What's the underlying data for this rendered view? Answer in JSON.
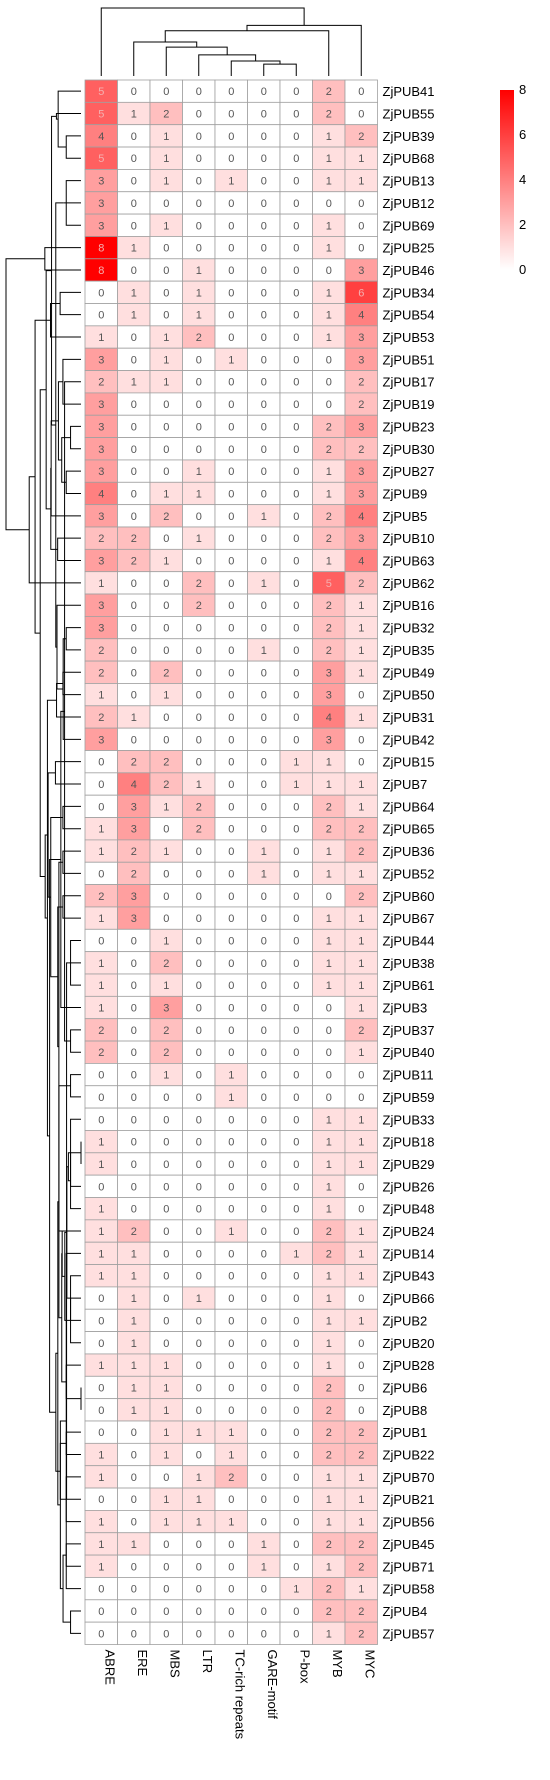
{
  "chart_data": {
    "type": "heatmap",
    "columns": [
      "ABRE",
      "ERE",
      "MBS",
      "LTR",
      "TC-rich repeats",
      "GARE-motif",
      "P-box",
      "MYB",
      "MYC"
    ],
    "rows": [
      {
        "label": "ZjPUB41",
        "values": [
          5,
          0,
          0,
          0,
          0,
          0,
          0,
          2,
          0
        ]
      },
      {
        "label": "ZjPUB55",
        "values": [
          5,
          1,
          2,
          0,
          0,
          0,
          0,
          2,
          0
        ]
      },
      {
        "label": "ZjPUB39",
        "values": [
          4,
          0,
          1,
          0,
          0,
          0,
          0,
          1,
          2
        ]
      },
      {
        "label": "ZjPUB68",
        "values": [
          5,
          0,
          1,
          0,
          0,
          0,
          0,
          1,
          1
        ]
      },
      {
        "label": "ZjPUB13",
        "values": [
          3,
          0,
          1,
          0,
          1,
          0,
          0,
          1,
          1
        ]
      },
      {
        "label": "ZjPUB12",
        "values": [
          3,
          0,
          0,
          0,
          0,
          0,
          0,
          0,
          0
        ]
      },
      {
        "label": "ZjPUB69",
        "values": [
          3,
          0,
          1,
          0,
          0,
          0,
          0,
          1,
          0
        ]
      },
      {
        "label": "ZjPUB25",
        "values": [
          8,
          1,
          0,
          0,
          0,
          0,
          0,
          1,
          0
        ]
      },
      {
        "label": "ZjPUB46",
        "values": [
          8,
          0,
          0,
          1,
          0,
          0,
          0,
          0,
          3
        ]
      },
      {
        "label": "ZjPUB34",
        "values": [
          0,
          1,
          0,
          1,
          0,
          0,
          0,
          1,
          6
        ]
      },
      {
        "label": "ZjPUB54",
        "values": [
          0,
          1,
          0,
          1,
          0,
          0,
          0,
          1,
          4
        ]
      },
      {
        "label": "ZjPUB53",
        "values": [
          1,
          0,
          1,
          2,
          0,
          0,
          0,
          1,
          3
        ]
      },
      {
        "label": "ZjPUB51",
        "values": [
          3,
          0,
          1,
          0,
          1,
          0,
          0,
          0,
          3
        ]
      },
      {
        "label": "ZjPUB17",
        "values": [
          2,
          1,
          1,
          0,
          0,
          0,
          0,
          0,
          2
        ]
      },
      {
        "label": "ZjPUB19",
        "values": [
          3,
          0,
          0,
          0,
          0,
          0,
          0,
          0,
          2
        ]
      },
      {
        "label": "ZjPUB23",
        "values": [
          3,
          0,
          0,
          0,
          0,
          0,
          0,
          2,
          3
        ]
      },
      {
        "label": "ZjPUB30",
        "values": [
          3,
          0,
          0,
          0,
          0,
          0,
          0,
          2,
          2
        ]
      },
      {
        "label": "ZjPUB27",
        "values": [
          3,
          0,
          0,
          1,
          0,
          0,
          0,
          1,
          3
        ]
      },
      {
        "label": "ZjPUB9",
        "values": [
          4,
          0,
          1,
          1,
          0,
          0,
          0,
          1,
          3
        ]
      },
      {
        "label": "ZjPUB5",
        "values": [
          3,
          0,
          2,
          0,
          0,
          1,
          0,
          2,
          4
        ]
      },
      {
        "label": "ZjPUB10",
        "values": [
          2,
          2,
          0,
          1,
          0,
          0,
          0,
          2,
          3
        ]
      },
      {
        "label": "ZjPUB63",
        "values": [
          3,
          2,
          1,
          0,
          0,
          0,
          0,
          1,
          4
        ]
      },
      {
        "label": "ZjPUB62",
        "values": [
          1,
          0,
          0,
          2,
          0,
          1,
          0,
          5,
          2
        ]
      },
      {
        "label": "ZjPUB16",
        "values": [
          3,
          0,
          0,
          2,
          0,
          0,
          0,
          2,
          1
        ]
      },
      {
        "label": "ZjPUB32",
        "values": [
          3,
          0,
          0,
          0,
          0,
          0,
          0,
          2,
          1
        ]
      },
      {
        "label": "ZjPUB35",
        "values": [
          2,
          0,
          0,
          0,
          0,
          1,
          0,
          2,
          1
        ]
      },
      {
        "label": "ZjPUB49",
        "values": [
          2,
          0,
          2,
          0,
          0,
          0,
          0,
          3,
          1
        ]
      },
      {
        "label": "ZjPUB50",
        "values": [
          1,
          0,
          1,
          0,
          0,
          0,
          0,
          3,
          0
        ]
      },
      {
        "label": "ZjPUB31",
        "values": [
          2,
          1,
          0,
          0,
          0,
          0,
          0,
          4,
          1
        ]
      },
      {
        "label": "ZjPUB42",
        "values": [
          3,
          0,
          0,
          0,
          0,
          0,
          0,
          3,
          0
        ]
      },
      {
        "label": "ZjPUB15",
        "values": [
          0,
          2,
          2,
          0,
          0,
          0,
          1,
          1,
          0
        ]
      },
      {
        "label": "ZjPUB7",
        "values": [
          0,
          4,
          2,
          1,
          0,
          0,
          1,
          1,
          1
        ]
      },
      {
        "label": "ZjPUB64",
        "values": [
          0,
          3,
          1,
          2,
          0,
          0,
          0,
          2,
          1
        ]
      },
      {
        "label": "ZjPUB65",
        "values": [
          1,
          3,
          0,
          2,
          0,
          0,
          0,
          2,
          2
        ]
      },
      {
        "label": "ZjPUB36",
        "values": [
          1,
          2,
          1,
          0,
          0,
          1,
          0,
          1,
          2
        ]
      },
      {
        "label": "ZjPUB52",
        "values": [
          0,
          2,
          0,
          0,
          0,
          1,
          0,
          1,
          1
        ]
      },
      {
        "label": "ZjPUB60",
        "values": [
          2,
          3,
          0,
          0,
          0,
          0,
          0,
          0,
          2
        ]
      },
      {
        "label": "ZjPUB67",
        "values": [
          1,
          3,
          0,
          0,
          0,
          0,
          0,
          1,
          1
        ]
      },
      {
        "label": "ZjPUB44",
        "values": [
          0,
          0,
          1,
          0,
          0,
          0,
          0,
          1,
          1
        ]
      },
      {
        "label": "ZjPUB38",
        "values": [
          1,
          0,
          2,
          0,
          0,
          0,
          0,
          1,
          1
        ]
      },
      {
        "label": "ZjPUB61",
        "values": [
          1,
          0,
          1,
          0,
          0,
          0,
          0,
          1,
          1
        ]
      },
      {
        "label": "ZjPUB3",
        "values": [
          1,
          0,
          3,
          0,
          0,
          0,
          0,
          0,
          1
        ]
      },
      {
        "label": "ZjPUB37",
        "values": [
          2,
          0,
          2,
          0,
          0,
          0,
          0,
          0,
          2
        ]
      },
      {
        "label": "ZjPUB40",
        "values": [
          2,
          0,
          2,
          0,
          0,
          0,
          0,
          0,
          1
        ]
      },
      {
        "label": "ZjPUB11",
        "values": [
          0,
          0,
          1,
          0,
          1,
          0,
          0,
          0,
          0
        ]
      },
      {
        "label": "ZjPUB59",
        "values": [
          0,
          0,
          0,
          0,
          1,
          0,
          0,
          0,
          0
        ]
      },
      {
        "label": "ZjPUB33",
        "values": [
          0,
          0,
          0,
          0,
          0,
          0,
          0,
          1,
          1
        ]
      },
      {
        "label": "ZjPUB18",
        "values": [
          1,
          0,
          0,
          0,
          0,
          0,
          0,
          1,
          1
        ]
      },
      {
        "label": "ZjPUB29",
        "values": [
          1,
          0,
          0,
          0,
          0,
          0,
          0,
          1,
          1
        ]
      },
      {
        "label": "ZjPUB26",
        "values": [
          0,
          0,
          0,
          0,
          0,
          0,
          0,
          1,
          0
        ]
      },
      {
        "label": "ZjPUB48",
        "values": [
          1,
          0,
          0,
          0,
          0,
          0,
          0,
          1,
          0
        ]
      },
      {
        "label": "ZjPUB24",
        "values": [
          1,
          2,
          0,
          0,
          1,
          0,
          0,
          2,
          1
        ]
      },
      {
        "label": "ZjPUB14",
        "values": [
          1,
          1,
          0,
          0,
          0,
          0,
          1,
          2,
          1
        ]
      },
      {
        "label": "ZjPUB43",
        "values": [
          1,
          1,
          0,
          0,
          0,
          0,
          0,
          1,
          1
        ]
      },
      {
        "label": "ZjPUB66",
        "values": [
          0,
          1,
          0,
          1,
          0,
          0,
          0,
          1,
          0
        ]
      },
      {
        "label": "ZjPUB2",
        "values": [
          0,
          1,
          0,
          0,
          0,
          0,
          0,
          1,
          1
        ]
      },
      {
        "label": "ZjPUB20",
        "values": [
          0,
          1,
          0,
          0,
          0,
          0,
          0,
          1,
          0
        ]
      },
      {
        "label": "ZjPUB28",
        "values": [
          1,
          1,
          1,
          0,
          0,
          0,
          0,
          1,
          0
        ]
      },
      {
        "label": "ZjPUB6",
        "values": [
          0,
          1,
          1,
          0,
          0,
          0,
          0,
          2,
          0
        ]
      },
      {
        "label": "ZjPUB8",
        "values": [
          0,
          1,
          1,
          0,
          0,
          0,
          0,
          2,
          0
        ]
      },
      {
        "label": "ZjPUB1",
        "values": [
          0,
          0,
          1,
          1,
          1,
          0,
          0,
          2,
          2
        ]
      },
      {
        "label": "ZjPUB22",
        "values": [
          1,
          0,
          1,
          0,
          1,
          0,
          0,
          2,
          2
        ]
      },
      {
        "label": "ZjPUB70",
        "values": [
          1,
          0,
          0,
          1,
          2,
          0,
          0,
          1,
          1
        ]
      },
      {
        "label": "ZjPUB21",
        "values": [
          0,
          0,
          1,
          1,
          0,
          0,
          0,
          1,
          1
        ]
      },
      {
        "label": "ZjPUB56",
        "values": [
          1,
          0,
          1,
          1,
          1,
          0,
          0,
          1,
          1
        ]
      },
      {
        "label": "ZjPUB45",
        "values": [
          1,
          1,
          0,
          0,
          0,
          1,
          0,
          2,
          2
        ]
      },
      {
        "label": "ZjPUB71",
        "values": [
          1,
          0,
          0,
          0,
          0,
          1,
          0,
          1,
          2
        ]
      },
      {
        "label": "ZjPUB58",
        "values": [
          0,
          0,
          0,
          0,
          0,
          0,
          1,
          2,
          1
        ]
      },
      {
        "label": "ZjPUB4",
        "values": [
          0,
          0,
          0,
          0,
          0,
          0,
          0,
          2,
          2
        ]
      },
      {
        "label": "ZjPUB57",
        "values": [
          0,
          0,
          0,
          0,
          0,
          0,
          0,
          1,
          2
        ]
      }
    ],
    "scale": {
      "min": 0,
      "max": 8,
      "colors": [
        "#ffffff",
        "#ff0000"
      ],
      "legend_ticks": [
        "0",
        "2",
        "4",
        "6",
        "8"
      ],
      "legend_placement": "top-right"
    },
    "dendrograms": {
      "rows": true,
      "columns": true
    }
  }
}
